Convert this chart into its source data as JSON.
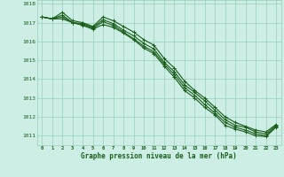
{
  "x": [
    0,
    1,
    2,
    3,
    4,
    5,
    6,
    7,
    8,
    9,
    10,
    11,
    12,
    13,
    14,
    15,
    16,
    17,
    18,
    19,
    20,
    21,
    22,
    23
  ],
  "series": [
    [
      1017.3,
      1017.2,
      1017.55,
      1017.1,
      1017.0,
      1016.8,
      1017.3,
      1017.1,
      1016.8,
      1016.5,
      1016.1,
      1015.8,
      1015.1,
      1014.6,
      1013.9,
      1013.4,
      1013.0,
      1012.5,
      1012.0,
      1011.7,
      1011.5,
      1011.3,
      1011.2,
      1011.6
    ],
    [
      1017.3,
      1017.2,
      1017.4,
      1017.0,
      1016.95,
      1016.75,
      1017.15,
      1016.95,
      1016.6,
      1016.3,
      1015.9,
      1015.6,
      1014.9,
      1014.4,
      1013.7,
      1013.3,
      1012.85,
      1012.35,
      1011.85,
      1011.55,
      1011.45,
      1011.2,
      1011.1,
      1011.55
    ],
    [
      1017.3,
      1017.2,
      1017.3,
      1017.0,
      1016.9,
      1016.7,
      1017.05,
      1016.85,
      1016.5,
      1016.15,
      1015.75,
      1015.45,
      1014.8,
      1014.25,
      1013.55,
      1013.15,
      1012.65,
      1012.2,
      1011.7,
      1011.45,
      1011.3,
      1011.1,
      1011.0,
      1011.5
    ],
    [
      1017.3,
      1017.2,
      1017.2,
      1017.0,
      1016.85,
      1016.65,
      1016.9,
      1016.75,
      1016.45,
      1016.1,
      1015.65,
      1015.35,
      1014.7,
      1014.1,
      1013.4,
      1013.0,
      1012.5,
      1012.1,
      1011.55,
      1011.35,
      1011.2,
      1011.0,
      1010.95,
      1011.45
    ]
  ],
  "line_color": "#1a5c1a",
  "marker_color": "#1a5c1a",
  "bg_color": "#cceee4",
  "grid_color": "#99ccbb",
  "text_color": "#1a5c1a",
  "xlabel": "Graphe pression niveau de la mer (hPa)",
  "ylim": [
    1010.5,
    1018.2
  ],
  "yticks": [
    1011,
    1012,
    1013,
    1014,
    1015,
    1016,
    1017,
    1018
  ],
  "xticks": [
    0,
    1,
    2,
    3,
    4,
    5,
    6,
    7,
    8,
    9,
    10,
    11,
    12,
    13,
    14,
    15,
    16,
    17,
    18,
    19,
    20,
    21,
    22,
    23
  ],
  "marker_size": 2.5,
  "line_width": 0.8
}
